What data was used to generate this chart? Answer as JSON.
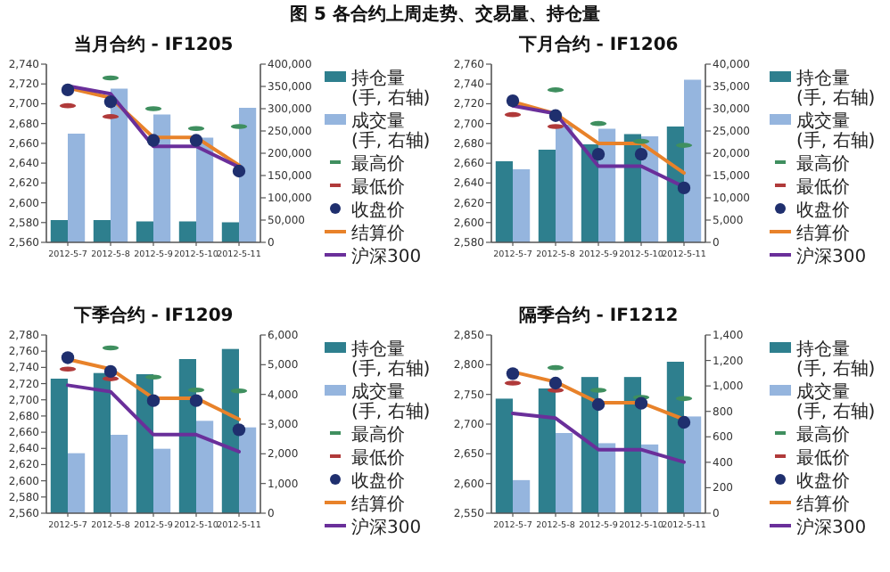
{
  "chart_data": [
    {
      "type": "bar",
      "title": "当月合约 - IF1205",
      "annotations": [
        "图 5 各合约上周走势、交易量、持仓量"
      ],
      "categories": [
        "2012-5-7",
        "2012-5-8",
        "2012-5-9",
        "2012-5-10",
        "2012-5-11"
      ],
      "ylim": [
        2560,
        2740
      ],
      "yticks": [
        {
          "value": 2560,
          "label": "2,560"
        },
        {
          "value": 2580,
          "label": "2,580"
        },
        {
          "value": 2600,
          "label": "2,600"
        },
        {
          "value": 2620,
          "label": "2,620"
        },
        {
          "value": 2640,
          "label": "2,640"
        },
        {
          "value": 2660,
          "label": "2,660"
        },
        {
          "value": 2680,
          "label": "2,680"
        },
        {
          "value": 2700,
          "label": "2,700"
        },
        {
          "value": 2720,
          "label": "2,720"
        },
        {
          "value": 2740,
          "label": "2,740"
        }
      ],
      "y2lim": [
        0,
        400000
      ],
      "y2ticks": [
        0,
        {
          "value": 50000,
          "label": "50,000"
        },
        {
          "value": 100000,
          "label": "100,000"
        },
        {
          "value": 150000,
          "label": "150,000"
        },
        {
          "value": 200000,
          "label": "200,000"
        },
        {
          "value": 250000,
          "label": "250,000"
        },
        {
          "value": 300000,
          "label": "300,000"
        },
        {
          "value": 350000,
          "label": "350,000"
        },
        {
          "value": 400000,
          "label": "400,000"
        }
      ],
      "legend": "right",
      "series": [
        {
          "name": "持仓量(手, 右轴)",
          "axis": "y2",
          "color": "#2e7f8e",
          "values": [
            50000,
            50000,
            47000,
            47000,
            45000
          ]
        },
        {
          "name": "成交量(手, 右轴)",
          "axis": "y2",
          "color": "#95b5de",
          "values": [
            244000,
            345000,
            287000,
            235000,
            302000
          ]
        },
        {
          "name": "最高价",
          "type": "scatter",
          "color": "#3f8f5f",
          "values": [
            null,
            2726,
            2695,
            2675,
            2677
          ]
        },
        {
          "name": "最低价",
          "type": "scatter",
          "color": "#b03a3a",
          "values": [
            2698,
            2687,
            null,
            null,
            null
          ]
        },
        {
          "name": "收盘价",
          "type": "scatter",
          "marker": "circle",
          "color": "#1f2f6e",
          "values": [
            2714,
            2702,
            2663,
            2663,
            2632
          ]
        },
        {
          "name": "结算价",
          "type": "line",
          "marker": "none",
          "color": "#e8822a",
          "values": [
            2716,
            2706,
            2666,
            2666,
            2638
          ]
        },
        {
          "name": "沪深300",
          "type": "line",
          "marker": "none",
          "color": "#6a2f9a",
          "values": [
            2718,
            2710,
            2657,
            2657,
            2636
          ]
        }
      ]
    },
    {
      "type": "bar",
      "title": "下月合约 - IF1206",
      "categories": [
        "2012-5-7",
        "2012-5-8",
        "2012-5-9",
        "2012-5-10",
        "2012-5-11"
      ],
      "ylim": [
        2580,
        2760
      ],
      "yticks": [
        {
          "value": 2580,
          "label": "2,580"
        },
        {
          "value": 2600,
          "label": "2,600"
        },
        {
          "value": 2620,
          "label": "2,620"
        },
        {
          "value": 2640,
          "label": "2,640"
        },
        {
          "value": 2660,
          "label": "2,660"
        },
        {
          "value": 2680,
          "label": "2,680"
        },
        {
          "value": 2700,
          "label": "2,700"
        },
        {
          "value": 2720,
          "label": "2,720"
        },
        {
          "value": 2740,
          "label": "2,740"
        },
        {
          "value": 2760,
          "label": "2,760"
        }
      ],
      "y2lim": [
        0,
        40000
      ],
      "y2ticks": [
        0,
        {
          "value": 5000,
          "label": "5,000"
        },
        {
          "value": 10000,
          "label": "10,000"
        },
        {
          "value": 15000,
          "label": "15,000"
        },
        {
          "value": 20000,
          "label": "20,000"
        },
        {
          "value": 25000,
          "label": "25,000"
        },
        {
          "value": 30000,
          "label": "30,000"
        },
        {
          "value": 35000,
          "label": "35,000"
        },
        {
          "value": 40000,
          "label": "40,000"
        }
      ],
      "legend": "right",
      "series": [
        {
          "name": "持仓量(手, 右轴)",
          "axis": "y2",
          "color": "#2e7f8e",
          "values": [
            18200,
            20800,
            22000,
            24300,
            26000
          ]
        },
        {
          "name": "成交量(手, 右轴)",
          "axis": "y2",
          "color": "#95b5de",
          "values": [
            16400,
            26400,
            25500,
            23800,
            36500
          ]
        },
        {
          "name": "最高价",
          "type": "scatter",
          "color": "#3f8f5f",
          "values": [
            null,
            2734,
            2700,
            2682,
            2678
          ]
        },
        {
          "name": "最低价",
          "type": "scatter",
          "color": "#b03a3a",
          "values": [
            2709,
            2697,
            null,
            null,
            null
          ]
        },
        {
          "name": "收盘价",
          "type": "scatter",
          "marker": "circle",
          "color": "#1f2f6e",
          "values": [
            2723,
            2708,
            2669,
            2669,
            2635
          ]
        },
        {
          "name": "结算价",
          "type": "line",
          "marker": "none",
          "color": "#e8822a",
          "values": [
            2722,
            2710,
            2680,
            2680,
            2650
          ]
        },
        {
          "name": "沪深300",
          "type": "line",
          "marker": "none",
          "color": "#6a2f9a",
          "values": [
            2718,
            2710,
            2657,
            2657,
            2636
          ]
        }
      ]
    },
    {
      "type": "bar",
      "title": "下季合约 - IF1209",
      "categories": [
        "2012-5-7",
        "2012-5-8",
        "2012-5-9",
        "2012-5-10",
        "2012-5-11"
      ],
      "ylim": [
        2560,
        2780
      ],
      "yticks": [
        {
          "value": 2560,
          "label": "2,560"
        },
        {
          "value": 2580,
          "label": "2,580"
        },
        {
          "value": 2600,
          "label": "2,600"
        },
        {
          "value": 2620,
          "label": "2,620"
        },
        {
          "value": 2640,
          "label": "2,640"
        },
        {
          "value": 2660,
          "label": "2,660"
        },
        {
          "value": 2680,
          "label": "2,680"
        },
        {
          "value": 2700,
          "label": "2,700"
        },
        {
          "value": 2720,
          "label": "2,720"
        },
        {
          "value": 2740,
          "label": "2,740"
        },
        {
          "value": 2760,
          "label": "2,760"
        },
        {
          "value": 2780,
          "label": "2,780"
        }
      ],
      "y2lim": [
        0,
        6000
      ],
      "y2ticks": [
        0,
        {
          "value": 1000,
          "label": "1,000"
        },
        {
          "value": 2000,
          "label": "2,000"
        },
        {
          "value": 3000,
          "label": "3,000"
        },
        {
          "value": 4000,
          "label": "4,000"
        },
        {
          "value": 5000,
          "label": "5,000"
        },
        {
          "value": 6000,
          "label": "6,000"
        }
      ],
      "legend": "right",
      "series": [
        {
          "name": "持仓量(手, 右轴)",
          "axis": "y2",
          "color": "#2e7f8e",
          "values": [
            4530,
            4720,
            4680,
            5190,
            5530
          ]
        },
        {
          "name": "成交量(手, 右轴)",
          "axis": "y2",
          "color": "#95b5de",
          "values": [
            2020,
            2640,
            2170,
            3110,
            2890
          ]
        },
        {
          "name": "最高价",
          "type": "scatter",
          "color": "#3f8f5f",
          "values": [
            null,
            2764,
            2728,
            2712,
            2711
          ]
        },
        {
          "name": "最低价",
          "type": "scatter",
          "color": "#b03a3a",
          "values": [
            2738,
            2726,
            null,
            null,
            null
          ]
        },
        {
          "name": "收盘价",
          "type": "scatter",
          "marker": "circle",
          "color": "#1f2f6e",
          "values": [
            2752,
            2735,
            2699,
            2699,
            2663
          ]
        },
        {
          "name": "结算价",
          "type": "line",
          "marker": "none",
          "color": "#e8822a",
          "values": [
            2750,
            2738,
            2702,
            2702,
            2676
          ]
        },
        {
          "name": "沪深300",
          "type": "line",
          "marker": "none",
          "color": "#6a2f9a",
          "values": [
            2718,
            2710,
            2657,
            2657,
            2636
          ]
        }
      ]
    },
    {
      "type": "bar",
      "title": "隔季合约 - IF1212",
      "categories": [
        "2012-5-7",
        "2012-5-8",
        "2012-5-9",
        "2012-5-10",
        "2012-5-11"
      ],
      "ylim": [
        2550,
        2850
      ],
      "yticks": [
        {
          "value": 2550,
          "label": "2,550"
        },
        {
          "value": 2600,
          "label": "2,600"
        },
        {
          "value": 2650,
          "label": "2,650"
        },
        {
          "value": 2700,
          "label": "2,700"
        },
        {
          "value": 2750,
          "label": "2,750"
        },
        {
          "value": 2800,
          "label": "2,800"
        },
        {
          "value": 2850,
          "label": "2,850"
        }
      ],
      "y2lim": [
        0,
        1400
      ],
      "y2ticks": [
        0,
        200,
        400,
        600,
        800,
        {
          "value": 1000,
          "label": "1,000"
        },
        {
          "value": 1200,
          "label": "1,200"
        },
        {
          "value": 1400,
          "label": "1,400"
        }
      ],
      "legend": "right",
      "series": [
        {
          "name": "持仓量(手, 右轴)",
          "axis": "y2",
          "color": "#2e7f8e",
          "values": [
            900,
            980,
            1070,
            1070,
            1190
          ]
        },
        {
          "name": "成交量(手, 右轴)",
          "axis": "y2",
          "color": "#95b5de",
          "values": [
            260,
            630,
            550,
            540,
            760
          ]
        },
        {
          "name": "最高价",
          "type": "scatter",
          "color": "#3f8f5f",
          "values": [
            null,
            2795,
            2757,
            2745,
            2743
          ]
        },
        {
          "name": "最低价",
          "type": "scatter",
          "color": "#b03a3a",
          "values": [
            2769,
            2757,
            null,
            null,
            null
          ]
        },
        {
          "name": "收盘价",
          "type": "scatter",
          "marker": "circle",
          "color": "#1f2f6e",
          "values": [
            2785,
            2769,
            2733,
            2735,
            2703
          ]
        },
        {
          "name": "结算价",
          "type": "line",
          "marker": "none",
          "color": "#e8822a",
          "values": [
            2788,
            2771,
            2736,
            2736,
            2708
          ]
        },
        {
          "name": "沪深300",
          "type": "line",
          "marker": "none",
          "color": "#6a2f9a",
          "values": [
            2718,
            2710,
            2657,
            2657,
            2636
          ]
        }
      ]
    }
  ]
}
